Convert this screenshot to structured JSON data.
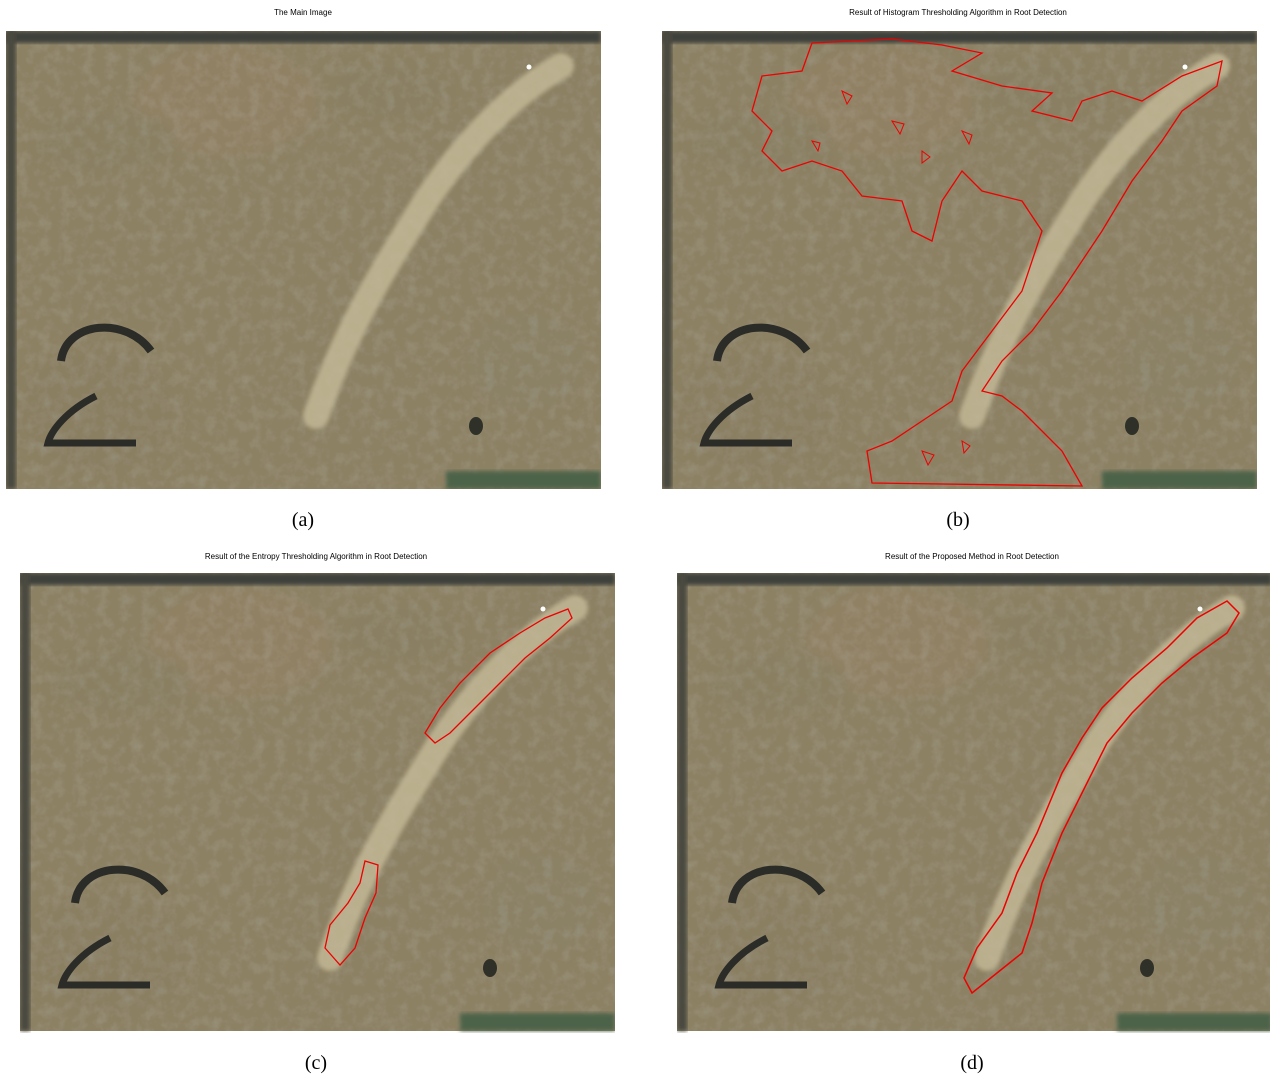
{
  "panels": [
    {
      "title": "The Main Image",
      "caption": "(a)"
    },
    {
      "title": "Result of Histogram Thresholding Algorithm in Root Detection",
      "caption": "(b)"
    },
    {
      "title": "Result of the Entropy Thresholding Algorithm in Root Detection",
      "caption": "(c)"
    },
    {
      "title": "Result of the Proposed Method in Root Detection",
      "caption": "(d)"
    }
  ]
}
